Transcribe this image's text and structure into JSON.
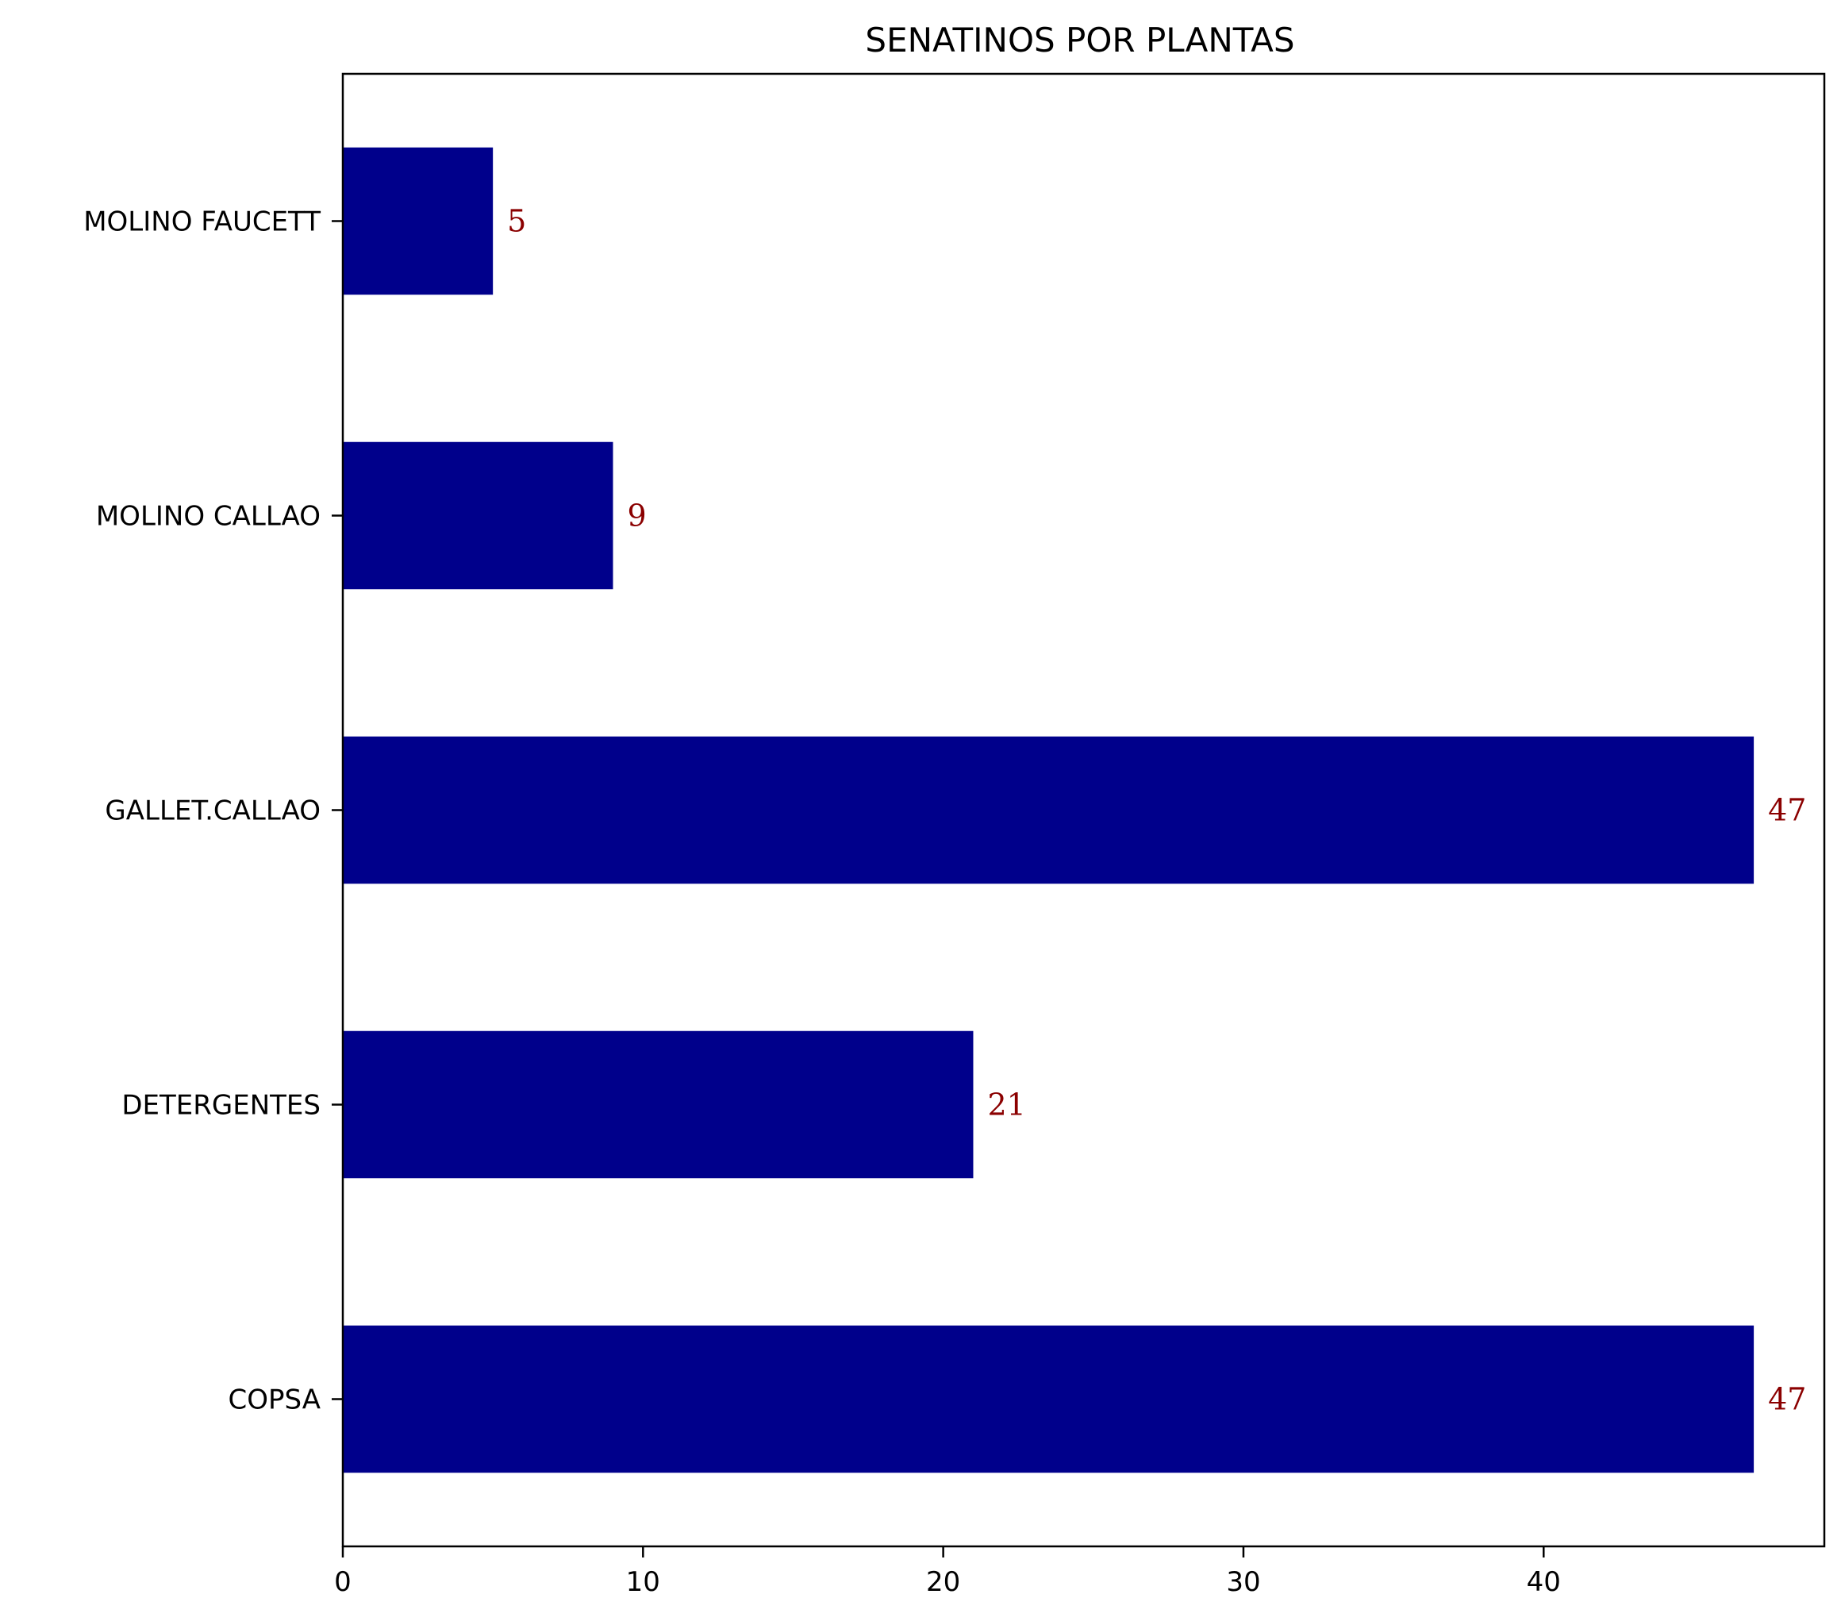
{
  "chart_data": {
    "type": "bar",
    "orientation": "horizontal",
    "title": "SENATINOS POR PLANTAS",
    "xlabel": "",
    "ylabel": "",
    "categories": [
      "MOLINO FAUCETT",
      "MOLINO CALLAO",
      "GALLET.CALLAO",
      "DETERGENTES",
      "COPSA"
    ],
    "values": [
      5,
      9,
      47,
      21,
      47
    ],
    "xlim": [
      0,
      49.35
    ],
    "xticks": [
      0,
      10,
      20,
      30,
      40
    ],
    "grid": false,
    "legend": "none",
    "colors": {
      "bar": "#00008b",
      "value_label": "#8b0000",
      "axis": "#000000",
      "background": "#ffffff"
    }
  }
}
